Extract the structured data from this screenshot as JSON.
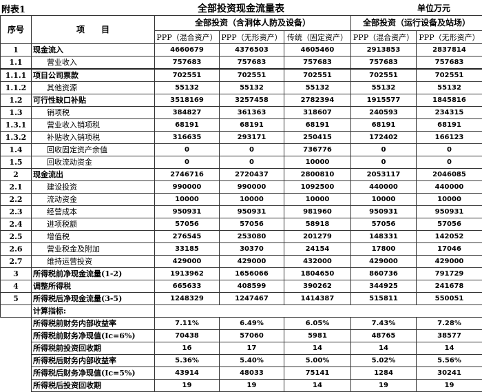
{
  "header": {
    "figure_label": "附表1",
    "title": "全部投资现金流量表",
    "unit": "单位万元"
  },
  "columns": {
    "no": "序号",
    "item": "项　　目",
    "group1": "全部投资（含洞体人防及设备）",
    "group2": "全部投资（运行设备及站场）",
    "sub": [
      "PPP（混合资产）",
      "PPP（无形资产）",
      "传统（固定资产）",
      "PPP（混合资产）",
      "PPP（无形资产）"
    ]
  },
  "rows": [
    {
      "no": "1",
      "item": "现金流入",
      "indent": false,
      "values": [
        "4660679",
        "4376503",
        "4605460",
        "2913853",
        "2837814"
      ]
    },
    {
      "no": "1.1",
      "item": "营业收入",
      "indent": true,
      "values": [
        "757683",
        "757683",
        "757683",
        "757683",
        "757683"
      ]
    },
    {
      "no": "1.1.1",
      "item": "项目公司票款",
      "indent": false,
      "values": [
        "702551",
        "702551",
        "702551",
        "702551",
        "702551"
      ]
    },
    {
      "no": "1.1.2",
      "item": "其他资源",
      "indent": true,
      "values": [
        "55132",
        "55132",
        "55132",
        "55132",
        "55132"
      ]
    },
    {
      "no": "1.2",
      "item": "可行性缺口补贴",
      "indent": false,
      "values": [
        "3518169",
        "3257458",
        "2782394",
        "1915577",
        "1845816"
      ]
    },
    {
      "no": "1.3",
      "item": "销项税",
      "indent": true,
      "values": [
        "384827",
        "361363",
        "318607",
        "240593",
        "234315"
      ]
    },
    {
      "no": "1.3.1",
      "item": "营业收入销项税",
      "indent": true,
      "values": [
        "68191",
        "68191",
        "68191",
        "68191",
        "68191"
      ]
    },
    {
      "no": "1.3.2",
      "item": "补贴收入销项税",
      "indent": true,
      "values": [
        "316635",
        "293171",
        "250415",
        "172402",
        "166123"
      ]
    },
    {
      "no": "1.4",
      "item": "回收固定资产余值",
      "indent": true,
      "values": [
        "0",
        "0",
        "736776",
        "0",
        "0"
      ]
    },
    {
      "no": "1.5",
      "item": "回收流动资金",
      "indent": true,
      "values": [
        "0",
        "0",
        "10000",
        "0",
        "0"
      ]
    },
    {
      "no": "2",
      "item": "现金流出",
      "indent": false,
      "values": [
        "2746716",
        "2720437",
        "2800810",
        "2053117",
        "2046085"
      ]
    },
    {
      "no": "2.1",
      "item": "建设投资",
      "indent": true,
      "values": [
        "990000",
        "990000",
        "1092500",
        "440000",
        "440000"
      ]
    },
    {
      "no": "2.2",
      "item": "流动资金",
      "indent": true,
      "values": [
        "10000",
        "10000",
        "10000",
        "10000",
        "10000"
      ]
    },
    {
      "no": "2.3",
      "item": "经营成本",
      "indent": true,
      "values": [
        "950931",
        "950931",
        "981960",
        "950931",
        "950931"
      ]
    },
    {
      "no": "2.4",
      "item": "进项税额",
      "indent": true,
      "values": [
        "57056",
        "57056",
        "58918",
        "57056",
        "57056"
      ]
    },
    {
      "no": "2.5",
      "item": "增值税",
      "indent": true,
      "values": [
        "276545",
        "253080",
        "201279",
        "148331",
        "142052"
      ]
    },
    {
      "no": "2.6",
      "item": "营业税金及附加",
      "indent": true,
      "values": [
        "33185",
        "30370",
        "24154",
        "17800",
        "17046"
      ]
    },
    {
      "no": "2.7",
      "item": "维持运营投资",
      "indent": true,
      "values": [
        "429000",
        "429000",
        "432000",
        "429000",
        "429000"
      ]
    },
    {
      "no": "3",
      "item": "所得税前净现金流量(1-2)",
      "indent": false,
      "values": [
        "1913962",
        "1656066",
        "1804650",
        "860736",
        "791729"
      ]
    },
    {
      "no": "4",
      "item": "调整所得税",
      "indent": false,
      "values": [
        "665633",
        "408599",
        "390262",
        "344925",
        "241678"
      ]
    },
    {
      "no": "5",
      "item": "所得税后净现金流量(3-5)",
      "indent": false,
      "values": [
        "1248329",
        "1247467",
        "1414387",
        "515811",
        "550051"
      ]
    }
  ],
  "indicators_label": "计算指标:",
  "indicators": [
    {
      "item": "所得税前财务内部收益率",
      "values": [
        "7.11%",
        "6.49%",
        "6.05%",
        "7.43%",
        "7.28%"
      ]
    },
    {
      "item": "所得税前财务净现值(Ic=6%)",
      "values": [
        "70438",
        "57060",
        "5981",
        "48765",
        "38577"
      ]
    },
    {
      "item": "所得税前投资回收期",
      "values": [
        "16",
        "17",
        "14",
        "14",
        "14"
      ]
    },
    {
      "item": "所得税后财务内部收益率",
      "values": [
        "5.36%",
        "5.40%",
        "5.00%",
        "5.02%",
        "5.56%"
      ]
    },
    {
      "item": "所得税后财务净现值(Ic=5%)",
      "values": [
        "43914",
        "48033",
        "75141",
        "1284",
        "30241"
      ]
    },
    {
      "item": "所得税后投资回收期",
      "values": [
        "19",
        "19",
        "14",
        "19",
        "19"
      ]
    }
  ]
}
